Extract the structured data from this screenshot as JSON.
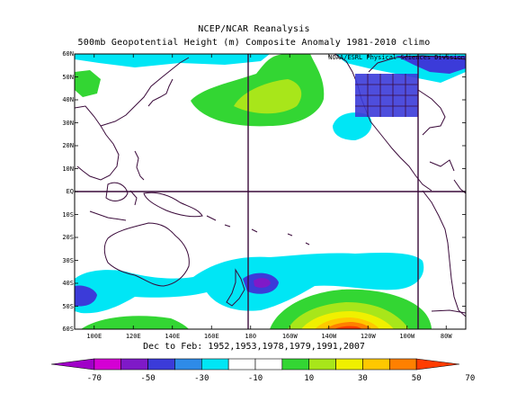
{
  "title_line1": "NCEP/NCAR Reanalysis",
  "title_line2": "500mb Geopotential Height (m) Composite Anomaly 1981-2010 climo",
  "credit": "NOAA/ESRL Physical Sciences Division",
  "date_line": "Dec to Feb: 1952,1953,1978,1979,1991,2007",
  "lat_labels": [
    "60N",
    "50N",
    "40N",
    "30N",
    "20N",
    "10N",
    "EQ",
    "10S",
    "20S",
    "30S",
    "40S",
    "50S",
    "60S"
  ],
  "lon_labels": [
    "100E",
    "120E",
    "140E",
    "160E",
    "180",
    "160W",
    "140W",
    "120W",
    "100W",
    "80W"
  ],
  "colorbar": {
    "labels": [
      "-70",
      "-50",
      "-30",
      "-10",
      "10",
      "30",
      "50",
      "70"
    ],
    "colors": [
      "#a000c8",
      "#d400d4",
      "#7f19c8",
      "#3b3bd9",
      "#2e8be8",
      "#00e6f5",
      "#ffffff",
      "#ffffff",
      "#33d633",
      "#a8e61a",
      "#f0f000",
      "#ffc800",
      "#ff8000",
      "#ff3c00"
    ]
  },
  "map": {
    "projection": "cylindrical",
    "lon_range": [
      "90E",
      "70W"
    ],
    "lat_range": [
      "60S",
      "60N"
    ],
    "variable": "500mb geopotential height anomaly",
    "units": "m"
  }
}
